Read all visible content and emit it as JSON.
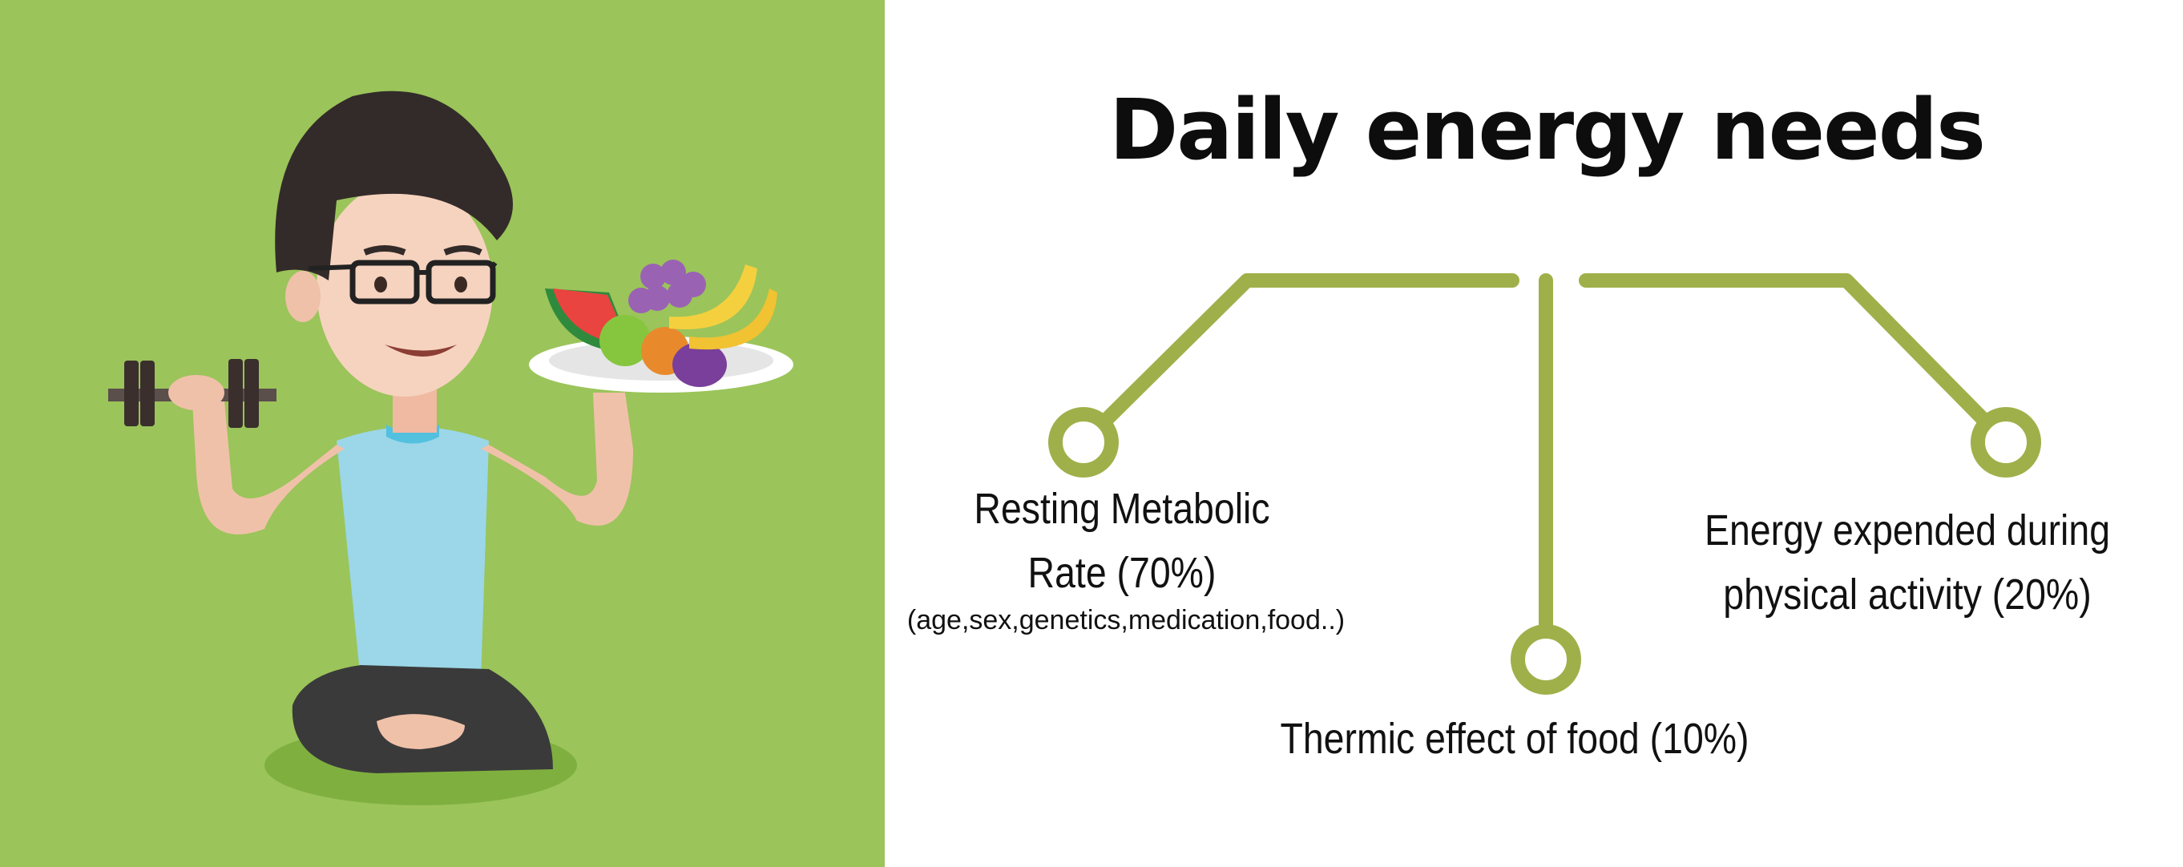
{
  "title": "Daily energy needs",
  "components": [
    {
      "label_line1": "Resting Metabolic",
      "label_line2": "Rate (70%)",
      "detail": "(age,sex,genetics,medication,food..)"
    },
    {
      "label_line1": "Energy expended during",
      "label_line2": "physical activity (20%)"
    },
    {
      "label": "Thermic effect of food (10%)"
    }
  ],
  "colors": {
    "background_left": "#9bc45a",
    "connector": "#9fb04a",
    "title": "#0d0d0d"
  },
  "illustration": {
    "description_icon": "man-with-dumbbell-and-fruit-plate-icon"
  }
}
